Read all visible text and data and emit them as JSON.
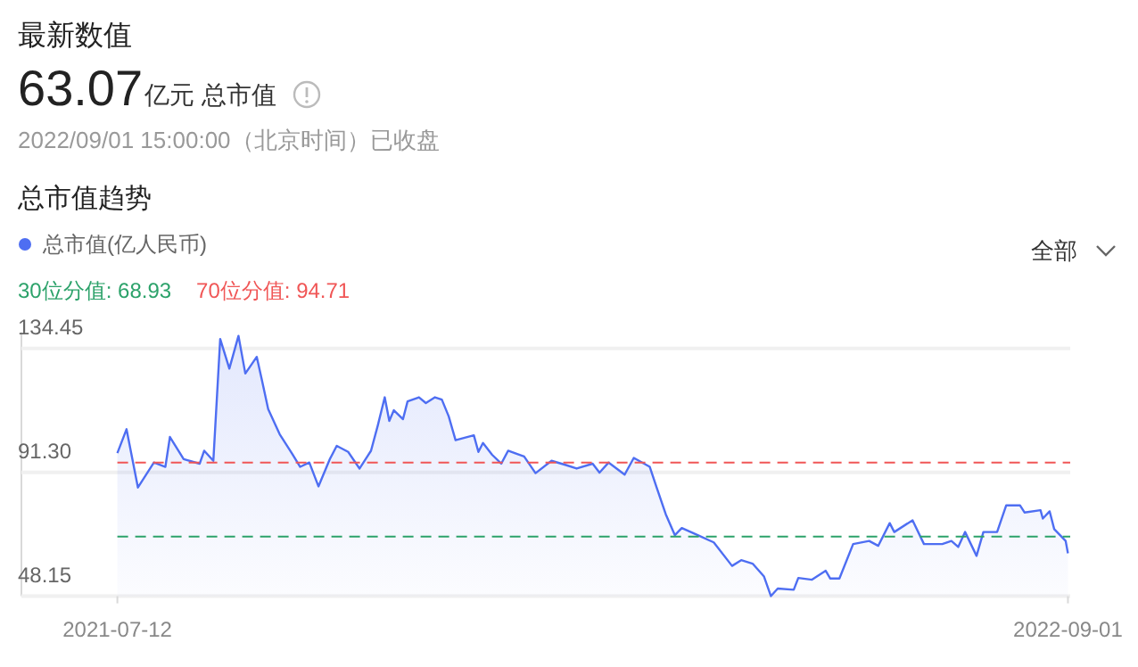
{
  "chart_data": {
    "type": "area",
    "title": "最新数值",
    "annotations": [
      "63.07",
      "亿元 总市值",
      "2022/09/01 15:00:00（北京时间）已收盘",
      "总市值趋势",
      "全部"
    ],
    "x": [
      "2021-07-12",
      "2021-07-16",
      "2021-07-21",
      "2021-07-28",
      "2021-08-02",
      "2021-08-04",
      "2021-08-10",
      "2021-08-17",
      "2021-08-19",
      "2021-08-23",
      "2021-08-26",
      "2021-08-30",
      "2021-09-03",
      "2021-09-06",
      "2021-09-11",
      "2021-09-13",
      "2021-09-16",
      "2021-09-21",
      "2021-09-26",
      "2021-09-30",
      "2021-10-04",
      "2021-10-08",
      "2021-10-13",
      "2021-10-16",
      "2021-10-21",
      "2021-10-26",
      "2021-10-31",
      "2021-11-03",
      "2021-11-06",
      "2021-11-08",
      "2021-11-10",
      "2021-11-14",
      "2021-11-16",
      "2021-11-21",
      "2021-11-24",
      "2021-11-28",
      "2021-12-01",
      "2021-12-04",
      "2021-12-07",
      "2021-12-15",
      "2021-12-17",
      "2021-12-19",
      "2021-12-23",
      "2021-12-27",
      "2021-12-30",
      "2022-01-06",
      "2022-01-11",
      "2022-01-18",
      "2022-01-24",
      "2022-01-29",
      "2022-02-05",
      "2022-02-08",
      "2022-02-12",
      "2022-02-19",
      "2022-02-23",
      "2022-03-02",
      "2022-03-05",
      "2022-03-09",
      "2022-03-13",
      "2022-03-16",
      "2022-03-23",
      "2022-03-30",
      "2022-04-07",
      "2022-04-11",
      "2022-04-16",
      "2022-04-21",
      "2022-04-24",
      "2022-04-27",
      "2022-05-04",
      "2022-05-06",
      "2022-05-12",
      "2022-05-18",
      "2022-05-20",
      "2022-05-24",
      "2022-05-30",
      "2022-06-06",
      "2022-06-10",
      "2022-06-15",
      "2022-06-17",
      "2022-06-25",
      "2022-06-30",
      "2022-07-08",
      "2022-07-12",
      "2022-07-15",
      "2022-07-18",
      "2022-07-23",
      "2022-07-26",
      "2022-08-01",
      "2022-08-05",
      "2022-08-11",
      "2022-08-13",
      "2022-08-20",
      "2022-08-21",
      "2022-08-24",
      "2022-08-26",
      "2022-08-31",
      "2022-09-01"
    ],
    "series": [
      {
        "name": "总市值(亿人民币)",
        "color": "#4e6ef2",
        "values": [
          98.0,
          106.3,
          86.0,
          94.7,
          93.2,
          103.6,
          95.9,
          94.3,
          98.8,
          95.3,
          137.7,
          127.4,
          138.8,
          125.7,
          131.5,
          124.3,
          113.3,
          104.6,
          98.4,
          93.2,
          94.7,
          86.4,
          95.9,
          100.5,
          98.4,
          92.6,
          98.8,
          107.7,
          117.4,
          109.2,
          112.9,
          109.8,
          116.0,
          117.4,
          115.4,
          117.4,
          116.6,
          110.8,
          102.5,
          104.2,
          98.4,
          101.5,
          97.4,
          94.3,
          98.8,
          96.8,
          91.0,
          95.3,
          93.9,
          92.6,
          94.3,
          91.2,
          94.7,
          90.5,
          96.3,
          93.2,
          86.0,
          76.7,
          69.4,
          71.9,
          69.4,
          66.9,
          58.7,
          60.7,
          59.5,
          55.0,
          48.2,
          50.8,
          50.4,
          54.5,
          53.9,
          57.0,
          54.3,
          54.3,
          66.3,
          67.4,
          65.7,
          73.6,
          70.5,
          74.6,
          66.3,
          66.3,
          67.4,
          65.3,
          70.5,
          62.2,
          70.5,
          70.5,
          79.8,
          79.8,
          77.3,
          78.1,
          75.2,
          77.7,
          71.5,
          67.4,
          63.1
        ]
      }
    ],
    "xlim": [
      "2021-05-31",
      "2022-09-02"
    ],
    "xticks": [
      "2021-07-12",
      "2022-09-01"
    ],
    "ylim": [
      48.15,
      140
    ],
    "yticks": [
      48.15,
      {
        "value": 91.3,
        "label": "91.30"
      },
      134.45
    ],
    "ref_lines": [
      {
        "axis": "y",
        "value": 68.93,
        "label": "30位分值: 68.93",
        "color": "#2ca26a",
        "line_style": "dashed"
      },
      {
        "axis": "y",
        "value": 94.71,
        "label": "70位分值: 94.71",
        "color": "#f05656",
        "line_style": "dashed"
      }
    ],
    "grid": "y",
    "legend": "top left"
  }
}
